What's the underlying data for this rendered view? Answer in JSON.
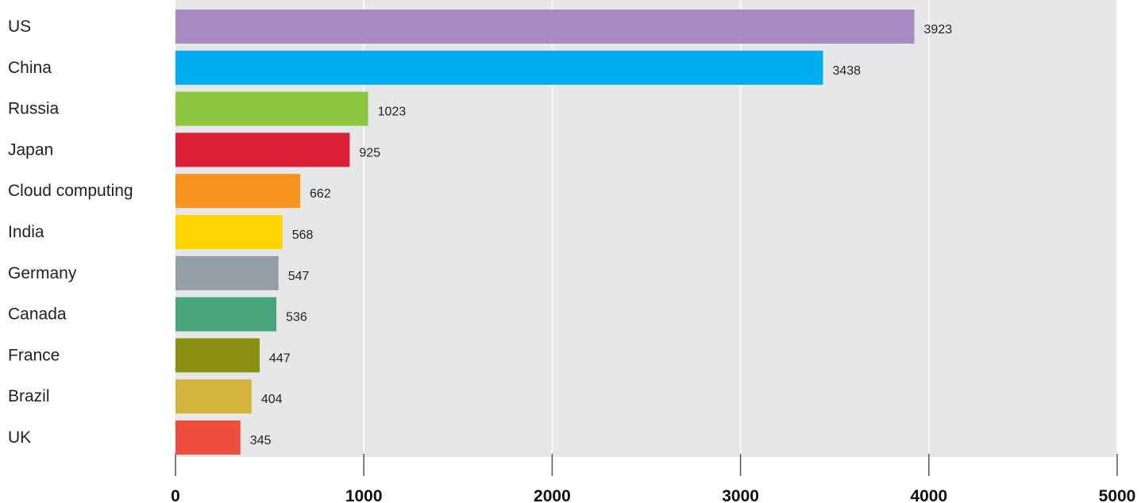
{
  "chart_data": {
    "type": "bar",
    "orientation": "horizontal",
    "title": "",
    "xlabel": "",
    "ylabel": "",
    "xlim": [
      0,
      5000
    ],
    "x_ticks": [
      "0",
      "1000",
      "2000",
      "3000",
      "4000",
      "5000"
    ],
    "grid": "vertical",
    "legend": "none",
    "plot_background": "#e6e7e8",
    "categories": [
      "US",
      "China",
      "Russia",
      "Japan",
      "Cloud computing",
      "India",
      "Germany",
      "Canada",
      "France",
      "Brazil",
      "UK"
    ],
    "values": [
      3923,
      3438,
      1023,
      925,
      662,
      568,
      547,
      536,
      447,
      404,
      345
    ],
    "value_labels": [
      "3923",
      "3438",
      "1023",
      "925",
      "662",
      "568",
      "547",
      "536",
      "447",
      "404",
      "345"
    ],
    "colors": [
      "#a889c1",
      "#00aeef",
      "#8dc63f",
      "#dc1f36",
      "#f7941d",
      "#ffd400",
      "#939ea6",
      "#48a57b",
      "#8a9010",
      "#d4b43c",
      "#ef4e3d"
    ]
  }
}
